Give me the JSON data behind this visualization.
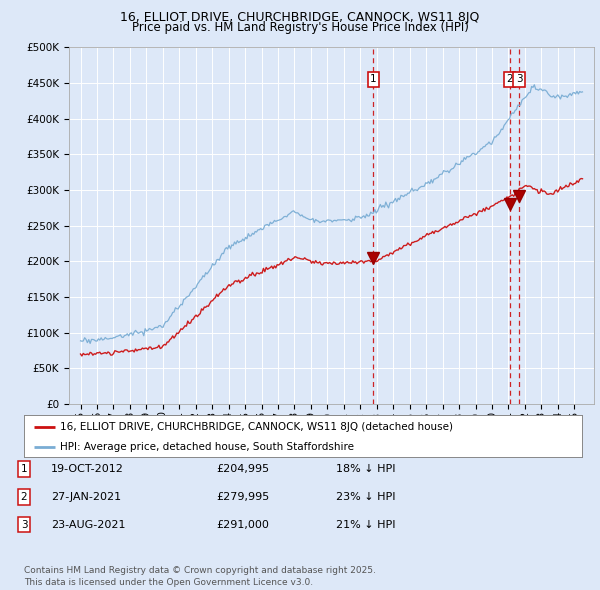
{
  "title": "16, ELLIOT DRIVE, CHURCHBRIDGE, CANNOCK, WS11 8JQ",
  "subtitle": "Price paid vs. HM Land Registry's House Price Index (HPI)",
  "ylim": [
    0,
    500000
  ],
  "yticks": [
    0,
    50000,
    100000,
    150000,
    200000,
    250000,
    300000,
    350000,
    400000,
    450000,
    500000
  ],
  "ytick_labels": [
    "£0",
    "£50K",
    "£100K",
    "£150K",
    "£200K",
    "£250K",
    "£300K",
    "£350K",
    "£400K",
    "£450K",
    "£500K"
  ],
  "background_color": "#dde8f8",
  "plot_bg_color": "#dde8f8",
  "grid_color": "#ffffff",
  "hpi_color": "#7aadd4",
  "price_color": "#cc1111",
  "vline_color": "#cc0000",
  "sale1_year": 2012.8,
  "sale2_year": 2021.07,
  "sale3_year": 2021.65,
  "sale1_price": 204995,
  "sale2_price": 279995,
  "sale3_price": 291000,
  "legend_label_price": "16, ELLIOT DRIVE, CHURCHBRIDGE, CANNOCK, WS11 8JQ (detached house)",
  "legend_label_hpi": "HPI: Average price, detached house, South Staffordshire",
  "table_data": [
    [
      "1",
      "19-OCT-2012",
      "£204,995",
      "18% ↓ HPI"
    ],
    [
      "2",
      "27-JAN-2021",
      "£279,995",
      "23% ↓ HPI"
    ],
    [
      "3",
      "23-AUG-2021",
      "£291,000",
      "21% ↓ HPI"
    ]
  ],
  "footer": "Contains HM Land Registry data © Crown copyright and database right 2025.\nThis data is licensed under the Open Government Licence v3.0.",
  "title_fontsize": 9,
  "subtitle_fontsize": 8.5,
  "tick_fontsize": 7.5,
  "legend_fontsize": 7.5,
  "table_fontsize": 8,
  "footer_fontsize": 6.5
}
